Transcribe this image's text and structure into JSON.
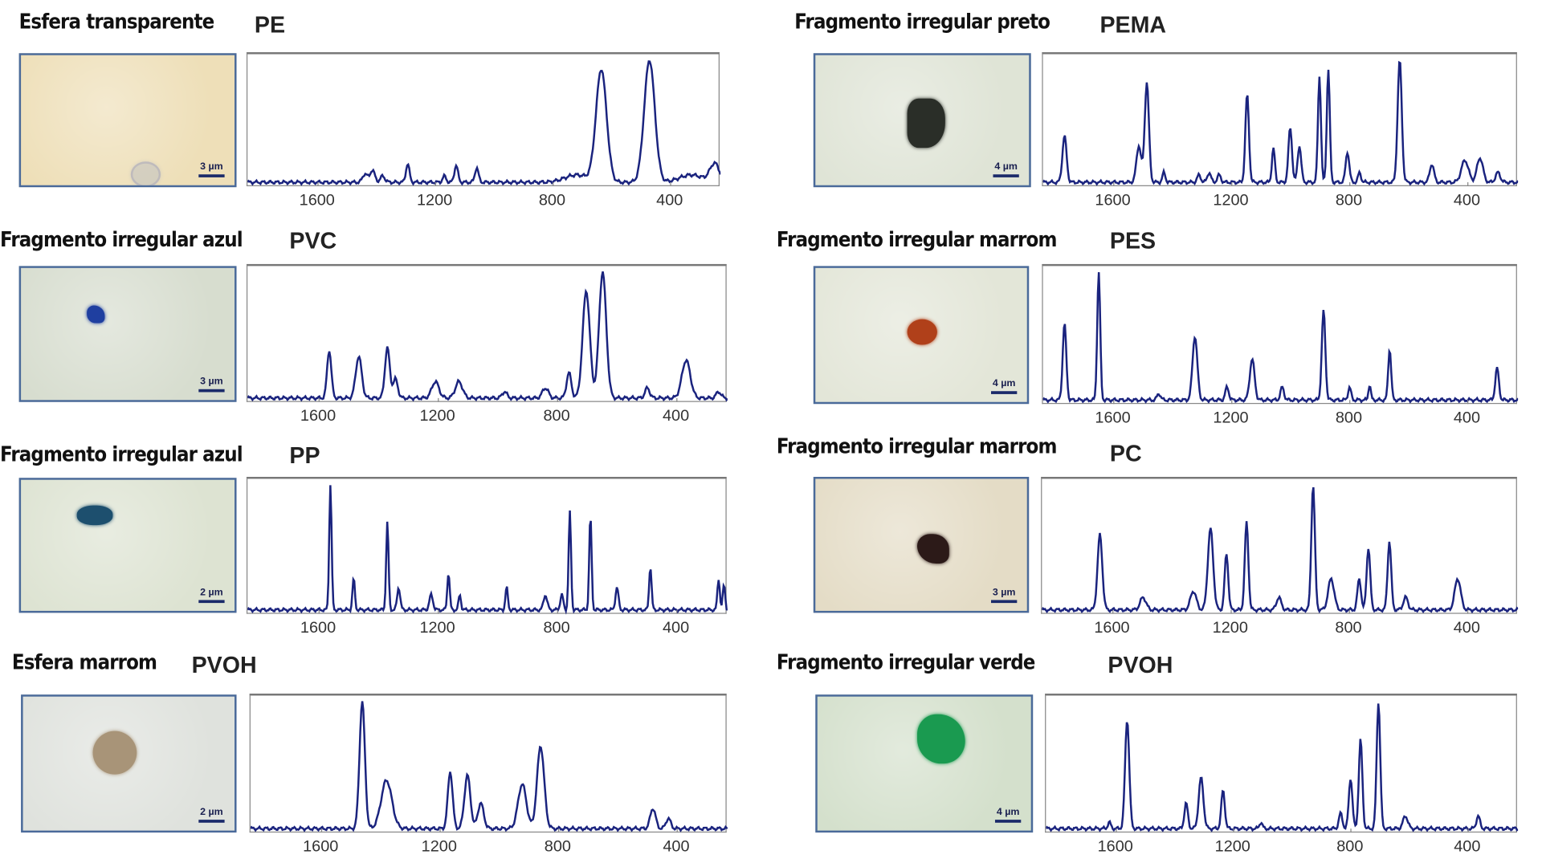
{
  "chart_data": {
    "type": "line",
    "title": "",
    "xlabel": "",
    "ylabel": "",
    "xlim": [
      1840,
      230
    ],
    "ylim": [
      0,
      1
    ],
    "x_ticks": [
      "1600",
      "1200",
      "800",
      "400"
    ],
    "x_tick_values": [
      1600,
      1200,
      800,
      400
    ],
    "line_color": "#1a237e",
    "peak_format": "[wavenumber, relative_intensity, width]",
    "panels": [
      {
        "title": "Esfera transparente",
        "polymer": "PE",
        "scale": "3 µm",
        "photo_bg": "#eedfb8",
        "particle": "#c9c8c0",
        "peaks": [
          [
            1440,
            0.07,
            8
          ],
          [
            1415,
            0.1,
            8
          ],
          [
            1380,
            0.05,
            8
          ],
          [
            1295,
            0.15,
            6
          ],
          [
            1170,
            0.05,
            6
          ],
          [
            1130,
            0.14,
            6
          ],
          [
            1060,
            0.12,
            6
          ],
          [
            720,
            0.06,
            40
          ],
          [
            636,
            0.92,
            18
          ],
          [
            472,
            1.0,
            18
          ],
          [
            330,
            0.06,
            40
          ],
          [
            250,
            0.15,
            16
          ]
        ]
      },
      {
        "title": "Fragmento irregular azul",
        "polymer": "PVC",
        "scale": "3 µm",
        "photo_bg": "#d7ddcf",
        "particle": "#1f3fa0",
        "peaks": [
          [
            1566,
            0.38,
            7
          ],
          [
            1467,
            0.33,
            10
          ],
          [
            1371,
            0.4,
            8
          ],
          [
            1344,
            0.15,
            8
          ],
          [
            1210,
            0.13,
            12
          ],
          [
            1131,
            0.13,
            12
          ],
          [
            978,
            0.05,
            8
          ],
          [
            841,
            0.08,
            10
          ],
          [
            762,
            0.2,
            8
          ],
          [
            704,
            0.85,
            12
          ],
          [
            649,
            1.0,
            12
          ],
          [
            499,
            0.08,
            8
          ],
          [
            369,
            0.3,
            14
          ],
          [
            260,
            0.05,
            8
          ]
        ]
      },
      {
        "title": "Fragmento irregular azul",
        "polymer": "PP",
        "scale": "2 µm",
        "photo_bg": "#dde3d2",
        "particle": "#1d4f6e",
        "peaks": [
          [
            1562,
            1.0,
            4
          ],
          [
            1484,
            0.25,
            4
          ],
          [
            1371,
            0.7,
            4
          ],
          [
            1333,
            0.18,
            5
          ],
          [
            1224,
            0.12,
            6
          ],
          [
            1166,
            0.3,
            4
          ],
          [
            1128,
            0.12,
            4
          ],
          [
            971,
            0.18,
            4
          ],
          [
            841,
            0.12,
            6
          ],
          [
            786,
            0.12,
            5
          ],
          [
            759,
            0.78,
            4
          ],
          [
            690,
            0.75,
            4
          ],
          [
            601,
            0.18,
            5
          ],
          [
            489,
            0.35,
            4
          ],
          [
            260,
            0.25,
            4
          ],
          [
            242,
            0.2,
            4
          ]
        ]
      },
      {
        "title": "Esfera marrom",
        "polymer": "PVOH",
        "scale": "2 µm",
        "photo_bg": "#dfe2dd",
        "particle": "#a89478",
        "peaks": [
          [
            1463,
            1.0,
            9
          ],
          [
            1381,
            0.38,
            18
          ],
          [
            1166,
            0.45,
            8
          ],
          [
            1108,
            0.42,
            10
          ],
          [
            1063,
            0.2,
            10
          ],
          [
            923,
            0.35,
            14
          ],
          [
            861,
            0.65,
            12
          ],
          [
            482,
            0.16,
            9
          ],
          [
            430,
            0.08,
            8
          ]
        ]
      },
      {
        "title": "Fragmento irregular preto",
        "polymer": "PEMA",
        "scale": "4 µm",
        "photo_bg": "#dfe4d6",
        "particle": "#2a2e28",
        "peaks": [
          [
            1767,
            0.38,
            7
          ],
          [
            1515,
            0.3,
            8
          ],
          [
            1488,
            0.82,
            7
          ],
          [
            1430,
            0.08,
            5
          ],
          [
            1311,
            0.06,
            6
          ],
          [
            1277,
            0.08,
            6
          ],
          [
            1243,
            0.06,
            6
          ],
          [
            1148,
            0.72,
            6
          ],
          [
            1059,
            0.28,
            5
          ],
          [
            1002,
            0.45,
            6
          ],
          [
            971,
            0.3,
            6
          ],
          [
            903,
            0.87,
            5
          ],
          [
            873,
            0.93,
            5
          ],
          [
            808,
            0.25,
            6
          ],
          [
            767,
            0.08,
            5
          ],
          [
            631,
            1.0,
            7
          ],
          [
            522,
            0.15,
            7
          ],
          [
            410,
            0.18,
            12
          ],
          [
            359,
            0.2,
            10
          ],
          [
            298,
            0.08,
            8
          ]
        ]
      },
      {
        "title": "Fragmento irregular marrom",
        "polymer": "PES",
        "scale": "4 µm",
        "photo_bg": "#e3e6d8",
        "particle": "#b0401a",
        "peaks": [
          [
            1767,
            0.6,
            6
          ],
          [
            1651,
            1.0,
            5
          ],
          [
            1447,
            0.05,
            6
          ],
          [
            1325,
            0.5,
            8
          ],
          [
            1216,
            0.1,
            6
          ],
          [
            1131,
            0.32,
            8
          ],
          [
            1029,
            0.1,
            6
          ],
          [
            889,
            0.7,
            6
          ],
          [
            801,
            0.1,
            5
          ],
          [
            733,
            0.12,
            4
          ],
          [
            665,
            0.4,
            5
          ],
          [
            301,
            0.25,
            6
          ]
        ]
      },
      {
        "title": "Fragmento irregular marrom",
        "polymer": "PC",
        "scale": "3 µm",
        "photo_bg": "#e4dcc6",
        "particle": "#2c1a18",
        "peaks": [
          [
            1644,
            0.6,
            8
          ],
          [
            1498,
            0.1,
            10
          ],
          [
            1328,
            0.15,
            10
          ],
          [
            1270,
            0.65,
            9
          ],
          [
            1216,
            0.45,
            6
          ],
          [
            1148,
            0.7,
            6
          ],
          [
            1039,
            0.1,
            8
          ],
          [
            923,
            1.0,
            6
          ],
          [
            862,
            0.25,
            10
          ],
          [
            767,
            0.25,
            6
          ],
          [
            736,
            0.5,
            6
          ],
          [
            665,
            0.55,
            6
          ],
          [
            610,
            0.1,
            8
          ],
          [
            434,
            0.25,
            10
          ]
        ]
      },
      {
        "title": "Fragmento irregular verde",
        "polymer": "PVOH",
        "scale": "4 µm",
        "photo_bg": "#d4e0cc",
        "particle": "#1a9a50",
        "peaks": [
          [
            1624,
            0.05,
            5
          ],
          [
            1563,
            0.86,
            7
          ],
          [
            1362,
            0.2,
            6
          ],
          [
            1311,
            0.4,
            8
          ],
          [
            1236,
            0.3,
            6
          ],
          [
            1107,
            0.05,
            5
          ],
          [
            835,
            0.12,
            6
          ],
          [
            801,
            0.4,
            6
          ],
          [
            767,
            0.7,
            6
          ],
          [
            706,
            1.0,
            6
          ],
          [
            614,
            0.1,
            8
          ],
          [
            366,
            0.1,
            6
          ]
        ]
      }
    ]
  }
}
